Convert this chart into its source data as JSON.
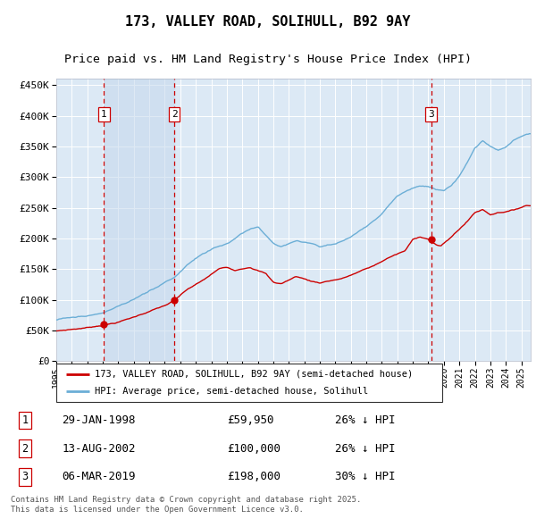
{
  "title": "173, VALLEY ROAD, SOLIHULL, B92 9AY",
  "subtitle": "Price paid vs. HM Land Registry's House Price Index (HPI)",
  "legend_line1": "173, VALLEY ROAD, SOLIHULL, B92 9AY (semi-detached house)",
  "legend_line2": "HPI: Average price, semi-detached house, Solihull",
  "footer": "Contains HM Land Registry data © Crown copyright and database right 2025.\nThis data is licensed under the Open Government Licence v3.0.",
  "transactions": [
    {
      "num": 1,
      "date": "29-JAN-1998",
      "price": 59950,
      "price_str": "£59,950",
      "pct": "26%",
      "dir": "↓"
    },
    {
      "num": 2,
      "date": "13-AUG-2002",
      "price": 100000,
      "price_str": "£100,000",
      "pct": "26%",
      "dir": "↓"
    },
    {
      "num": 3,
      "date": "06-MAR-2019",
      "price": 198000,
      "price_str": "£198,000",
      "pct": "30%",
      "dir": "↓"
    }
  ],
  "transaction_dates_dec": [
    1998.08,
    2002.62,
    2019.18
  ],
  "transaction_prices": [
    59950,
    100000,
    198000
  ],
  "hpi_color": "#6baed6",
  "price_color": "#cc0000",
  "plot_bg": "#dce9f5",
  "grid_color": "#ffffff",
  "vline_color": "#cc0000",
  "box_color": "#cc0000",
  "span_color": "#c5d8ed",
  "ylim": [
    0,
    460000
  ],
  "yticks": [
    0,
    50000,
    100000,
    150000,
    200000,
    250000,
    300000,
    350000,
    400000,
    450000
  ],
  "xlim_start": 1995.0,
  "xlim_end": 2025.6,
  "title_fontsize": 11,
  "subtitle_fontsize": 9.5
}
